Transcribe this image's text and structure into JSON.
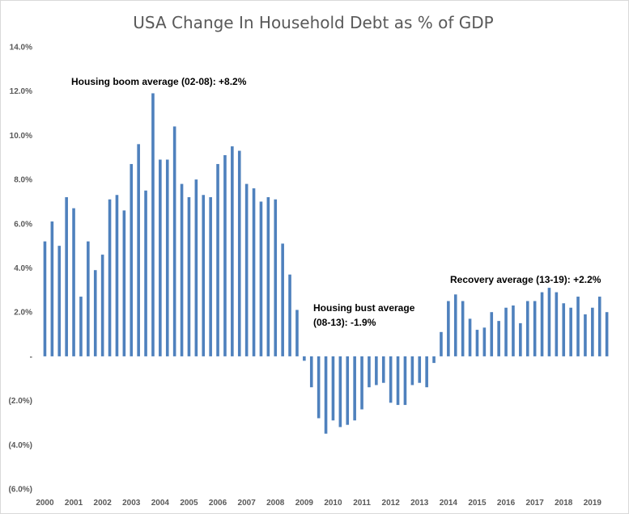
{
  "chart_data": {
    "type": "bar",
    "title": "USA Change In Household Debt as % of GDP",
    "xlabel": "",
    "ylabel": "",
    "ylim": [
      -6,
      14
    ],
    "y_ticks": [
      {
        "value": 14,
        "label": "14.0%"
      },
      {
        "value": 12,
        "label": "12.0%"
      },
      {
        "value": 10,
        "label": "10.0%"
      },
      {
        "value": 8,
        "label": "8.0%"
      },
      {
        "value": 6,
        "label": "6.0%"
      },
      {
        "value": 4,
        "label": "4.0%"
      },
      {
        "value": 2,
        "label": "2.0%"
      },
      {
        "value": 0,
        "label": "-"
      },
      {
        "value": -2,
        "label": "(2.0%)"
      },
      {
        "value": -4,
        "label": "(4.0%)"
      },
      {
        "value": -6,
        "label": "(6.0%)"
      }
    ],
    "year_labels": [
      "2000",
      "2001",
      "2002",
      "2003",
      "2004",
      "2005",
      "2006",
      "2007",
      "2008",
      "2009",
      "2010",
      "2011",
      "2012",
      "2013",
      "2014",
      "2015",
      "2016",
      "2017",
      "2018",
      "2019"
    ],
    "quarters_per_year": 4,
    "grid": false,
    "legend": "none",
    "bar_color": "#4f81bd",
    "values": [
      5.2,
      6.1,
      5.0,
      7.2,
      6.7,
      2.7,
      5.2,
      3.9,
      4.6,
      7.1,
      7.3,
      6.6,
      8.7,
      9.6,
      7.5,
      11.9,
      8.9,
      8.9,
      10.4,
      7.8,
      7.2,
      8.0,
      7.3,
      7.2,
      8.7,
      9.1,
      9.5,
      9.3,
      7.8,
      7.6,
      7.0,
      7.2,
      7.1,
      5.1,
      3.7,
      2.1,
      -0.2,
      -1.4,
      -2.8,
      -3.5,
      -2.9,
      -3.2,
      -3.1,
      -2.9,
      -2.4,
      -1.4,
      -1.3,
      -1.2,
      -2.1,
      -2.2,
      -2.2,
      -1.3,
      -1.2,
      -1.4,
      -0.3,
      1.1,
      2.5,
      2.8,
      2.5,
      1.7,
      1.2,
      1.3,
      2.0,
      1.6,
      2.2,
      2.3,
      1.5,
      2.5,
      2.5,
      2.9,
      3.1,
      2.9,
      2.4,
      2.2,
      2.7,
      1.9,
      2.2,
      2.7,
      2.0
    ],
    "annotations": [
      {
        "id": "boom",
        "lines": [
          "Housing boom average (02-08): +8.2%"
        ]
      },
      {
        "id": "bust",
        "lines": [
          "Housing bust average",
          "(08-13): -1.9%"
        ]
      },
      {
        "id": "recovery",
        "lines": [
          "Recovery average (13-19): +2.2%"
        ]
      }
    ]
  }
}
